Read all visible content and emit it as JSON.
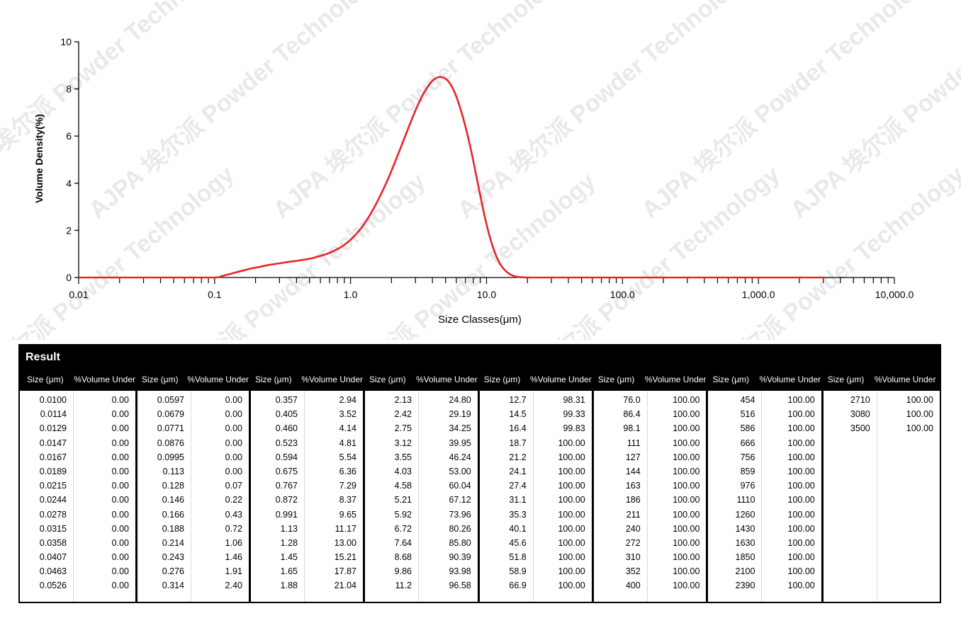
{
  "chart_data": {
    "type": "line",
    "title": "",
    "xlabel": "Size Classes(μm)",
    "ylabel": "Volume Density(%)",
    "xscale": "log",
    "xlim": [
      0.01,
      10000
    ],
    "ylim": [
      0,
      10
    ],
    "x_tick_labels": [
      "0.01",
      "0.1",
      "1.0",
      "10.0",
      "100.0",
      "1,000.0",
      "10,000.0"
    ],
    "y_tick_labels": [
      "0",
      "2",
      "4",
      "6",
      "8",
      "10"
    ],
    "line_color": "#e8242c",
    "series": [
      {
        "x": [
          0.01,
          0.02,
          0.05,
          0.0995,
          0.113,
          0.128,
          0.146,
          0.166,
          0.188,
          0.214,
          0.243,
          0.276,
          0.314,
          0.357,
          0.405,
          0.46,
          0.523,
          0.594,
          0.675,
          0.767,
          0.872,
          0.991,
          1.13,
          1.28,
          1.45,
          1.65,
          1.88,
          2.13,
          2.42,
          2.75,
          3.12,
          3.55,
          4.03,
          4.58,
          5.21,
          5.92,
          6.72,
          7.64,
          8.68,
          9.86,
          11.2,
          12.7,
          14.5,
          16.4,
          18.7,
          21.2,
          50,
          100,
          500,
          1000,
          3080
        ],
        "y": [
          0,
          0,
          0,
          0,
          0.06,
          0.14,
          0.23,
          0.31,
          0.39,
          0.45,
          0.52,
          0.57,
          0.62,
          0.67,
          0.71,
          0.76,
          0.82,
          0.91,
          1.01,
          1.15,
          1.33,
          1.58,
          1.92,
          2.33,
          2.84,
          3.46,
          4.16,
          4.92,
          5.73,
          6.55,
          7.31,
          7.94,
          8.36,
          8.51,
          8.34,
          7.76,
          6.78,
          5.48,
          3.92,
          2.41,
          1.25,
          0.54,
          0.18,
          0.04,
          0.01,
          0,
          0,
          0,
          0,
          0,
          0
        ]
      }
    ],
    "watermark": "AJPA 埃尔派 Powder Technology"
  },
  "result": {
    "title": "Result",
    "size_header": "Size (μm)",
    "volume_header": "%Volume Under",
    "groups": [
      {
        "size": [
          "0.0100",
          "0.0114",
          "0.0129",
          "0.0147",
          "0.0167",
          "0.0189",
          "0.0215",
          "0.0244",
          "0.0278",
          "0.0315",
          "0.0358",
          "0.0407",
          "0.0463",
          "0.0526"
        ],
        "vol": [
          "0.00",
          "0.00",
          "0.00",
          "0.00",
          "0.00",
          "0.00",
          "0.00",
          "0.00",
          "0.00",
          "0.00",
          "0.00",
          "0.00",
          "0.00",
          "0.00"
        ]
      },
      {
        "size": [
          "0.0597",
          "0.0679",
          "0.0771",
          "0.0876",
          "0.0995",
          "0.113",
          "0.128",
          "0.146",
          "0.166",
          "0.188",
          "0.214",
          "0.243",
          "0.276",
          "0.314"
        ],
        "vol": [
          "0.00",
          "0.00",
          "0.00",
          "0.00",
          "0.00",
          "0.00",
          "0.07",
          "0.22",
          "0.43",
          "0.72",
          "1.06",
          "1.46",
          "1.91",
          "2.40"
        ]
      },
      {
        "size": [
          "0.357",
          "0.405",
          "0.460",
          "0.523",
          "0.594",
          "0.675",
          "0.767",
          "0.872",
          "0.991",
          "1.13",
          "1.28",
          "1.45",
          "1.65",
          "1.88"
        ],
        "vol": [
          "2.94",
          "3.52",
          "4.14",
          "4.81",
          "5.54",
          "6.36",
          "7.29",
          "8.37",
          "9.65",
          "11.17",
          "13.00",
          "15.21",
          "17.87",
          "21.04"
        ]
      },
      {
        "size": [
          "2.13",
          "2.42",
          "2.75",
          "3.12",
          "3.55",
          "4.03",
          "4.58",
          "5.21",
          "5.92",
          "6.72",
          "7.64",
          "8.68",
          "9.86",
          "11.2"
        ],
        "vol": [
          "24.80",
          "29.19",
          "34.25",
          "39.95",
          "46.24",
          "53.00",
          "60.04",
          "67.12",
          "73.96",
          "80.26",
          "85.80",
          "90.39",
          "93.98",
          "96.58"
        ]
      },
      {
        "size": [
          "12.7",
          "14.5",
          "16.4",
          "18.7",
          "21.2",
          "24.1",
          "27.4",
          "31.1",
          "35.3",
          "40.1",
          "45.6",
          "51.8",
          "58.9",
          "66.9"
        ],
        "vol": [
          "98.31",
          "99.33",
          "99.83",
          "100.00",
          "100.00",
          "100.00",
          "100.00",
          "100.00",
          "100.00",
          "100.00",
          "100.00",
          "100.00",
          "100.00",
          "100.00"
        ]
      },
      {
        "size": [
          "76.0",
          "86.4",
          "98.1",
          "111",
          "127",
          "144",
          "163",
          "186",
          "211",
          "240",
          "272",
          "310",
          "352",
          "400"
        ],
        "vol": [
          "100.00",
          "100.00",
          "100.00",
          "100.00",
          "100.00",
          "100.00",
          "100.00",
          "100.00",
          "100.00",
          "100.00",
          "100.00",
          "100.00",
          "100.00",
          "100.00"
        ]
      },
      {
        "size": [
          "454",
          "516",
          "586",
          "666",
          "756",
          "859",
          "976",
          "1110",
          "1260",
          "1430",
          "1630",
          "1850",
          "2100",
          "2390"
        ],
        "vol": [
          "100.00",
          "100.00",
          "100.00",
          "100.00",
          "100.00",
          "100.00",
          "100.00",
          "100.00",
          "100.00",
          "100.00",
          "100.00",
          "100.00",
          "100.00",
          "100.00"
        ]
      },
      {
        "size": [
          "2710",
          "3080",
          "3500"
        ],
        "vol": [
          "100.00",
          "100.00",
          "100.00"
        ]
      }
    ]
  }
}
